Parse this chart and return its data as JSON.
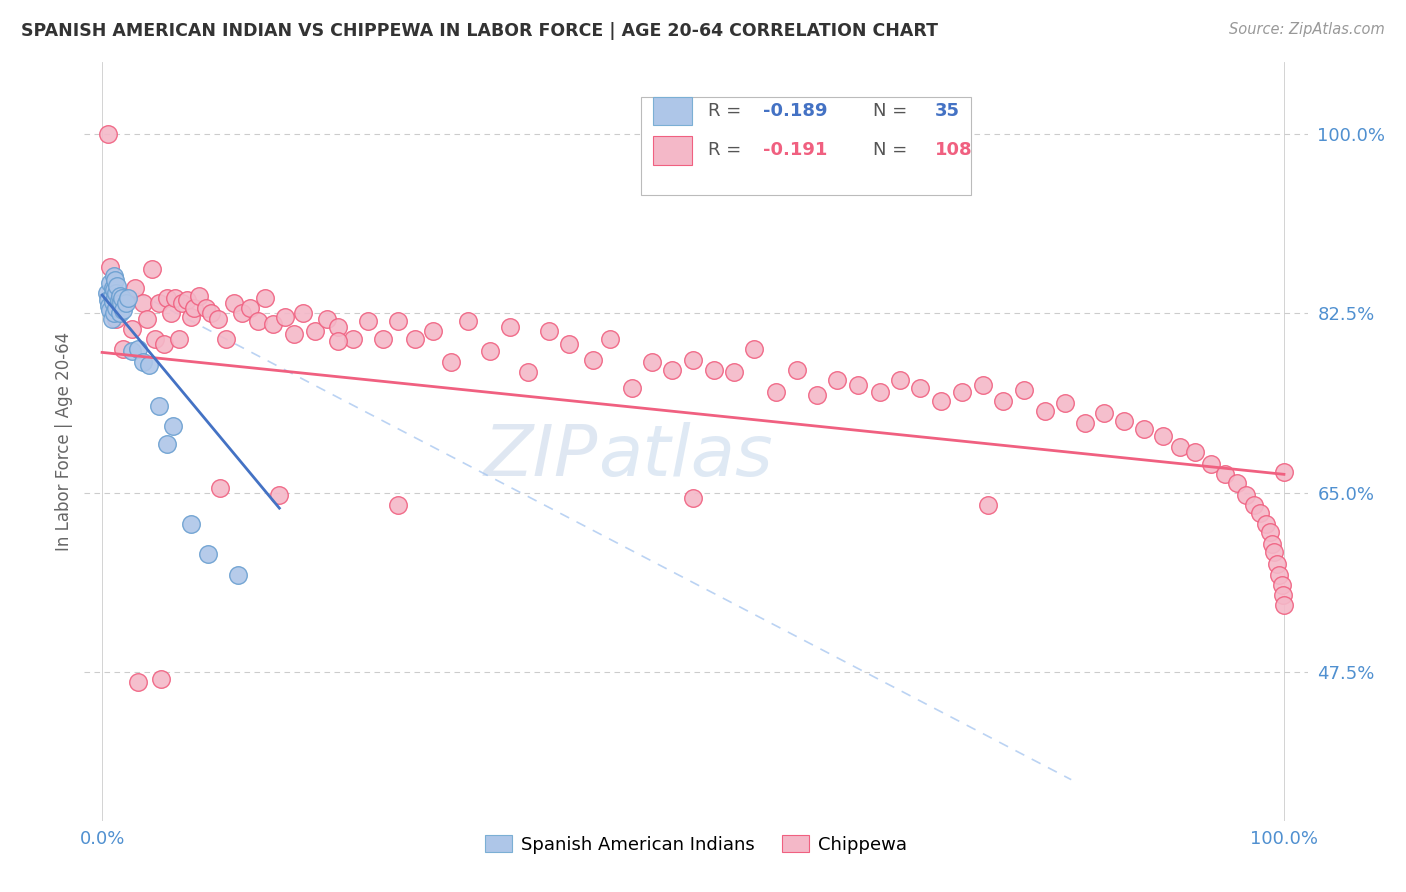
{
  "title": "SPANISH AMERICAN INDIAN VS CHIPPEWA IN LABOR FORCE | AGE 20-64 CORRELATION CHART",
  "source": "Source: ZipAtlas.com",
  "ylabel": "In Labor Force | Age 20-64",
  "color_blue": "#aec6e8",
  "color_pink": "#f4b8c8",
  "line_blue": "#4472c4",
  "line_pink": "#f06080",
  "line_dashed_color": "#aac8f0",
  "watermark_zip": "ZIP",
  "watermark_atlas": "atlas",
  "blue_x": [
    0.004,
    0.005,
    0.006,
    0.007,
    0.007,
    0.008,
    0.008,
    0.009,
    0.009,
    0.01,
    0.01,
    0.01,
    0.011,
    0.011,
    0.012,
    0.012,
    0.013,
    0.014,
    0.015,
    0.015,
    0.016,
    0.017,
    0.018,
    0.02,
    0.022,
    0.025,
    0.03,
    0.035,
    0.04,
    0.048,
    0.055,
    0.06,
    0.075,
    0.09,
    0.115
  ],
  "blue_y": [
    0.845,
    0.838,
    0.832,
    0.828,
    0.855,
    0.82,
    0.842,
    0.836,
    0.85,
    0.825,
    0.848,
    0.862,
    0.84,
    0.858,
    0.83,
    0.845,
    0.852,
    0.838,
    0.825,
    0.842,
    0.835,
    0.84,
    0.828,
    0.835,
    0.84,
    0.788,
    0.79,
    0.778,
    0.775,
    0.735,
    0.698,
    0.715,
    0.62,
    0.59,
    0.57
  ],
  "pink_x": [
    0.005,
    0.007,
    0.01,
    0.012,
    0.015,
    0.018,
    0.02,
    0.025,
    0.028,
    0.03,
    0.035,
    0.038,
    0.042,
    0.045,
    0.048,
    0.052,
    0.055,
    0.058,
    0.062,
    0.065,
    0.068,
    0.072,
    0.075,
    0.078,
    0.082,
    0.088,
    0.092,
    0.098,
    0.105,
    0.112,
    0.118,
    0.125,
    0.132,
    0.138,
    0.145,
    0.155,
    0.162,
    0.17,
    0.18,
    0.19,
    0.2,
    0.212,
    0.225,
    0.238,
    0.25,
    0.265,
    0.28,
    0.295,
    0.31,
    0.328,
    0.345,
    0.36,
    0.378,
    0.395,
    0.415,
    0.43,
    0.448,
    0.465,
    0.482,
    0.5,
    0.518,
    0.535,
    0.552,
    0.57,
    0.588,
    0.605,
    0.622,
    0.64,
    0.658,
    0.675,
    0.692,
    0.71,
    0.728,
    0.745,
    0.762,
    0.78,
    0.798,
    0.815,
    0.832,
    0.848,
    0.865,
    0.882,
    0.898,
    0.912,
    0.925,
    0.938,
    0.95,
    0.96,
    0.968,
    0.975,
    0.98,
    0.985,
    0.988,
    0.99,
    0.992,
    0.994,
    0.996,
    0.998,
    0.999,
    1.0,
    0.05,
    0.1,
    0.15,
    0.2,
    0.25,
    0.5,
    0.75,
    1.0
  ],
  "pink_y": [
    1.0,
    0.87,
    0.835,
    0.82,
    0.84,
    0.79,
    0.838,
    0.81,
    0.85,
    0.465,
    0.835,
    0.82,
    0.868,
    0.8,
    0.835,
    0.795,
    0.84,
    0.825,
    0.84,
    0.8,
    0.835,
    0.838,
    0.822,
    0.83,
    0.842,
    0.83,
    0.825,
    0.82,
    0.8,
    0.835,
    0.825,
    0.83,
    0.818,
    0.84,
    0.815,
    0.822,
    0.805,
    0.825,
    0.808,
    0.82,
    0.812,
    0.8,
    0.818,
    0.8,
    0.818,
    0.8,
    0.808,
    0.778,
    0.818,
    0.788,
    0.812,
    0.768,
    0.808,
    0.795,
    0.78,
    0.8,
    0.752,
    0.778,
    0.77,
    0.78,
    0.77,
    0.768,
    0.79,
    0.748,
    0.77,
    0.745,
    0.76,
    0.755,
    0.748,
    0.76,
    0.752,
    0.74,
    0.748,
    0.755,
    0.74,
    0.75,
    0.73,
    0.738,
    0.718,
    0.728,
    0.72,
    0.712,
    0.705,
    0.695,
    0.69,
    0.678,
    0.668,
    0.66,
    0.648,
    0.638,
    0.63,
    0.62,
    0.612,
    0.6,
    0.592,
    0.58,
    0.57,
    0.56,
    0.55,
    0.54,
    0.468,
    0.655,
    0.648,
    0.798,
    0.638,
    0.645,
    0.638,
    0.67
  ]
}
